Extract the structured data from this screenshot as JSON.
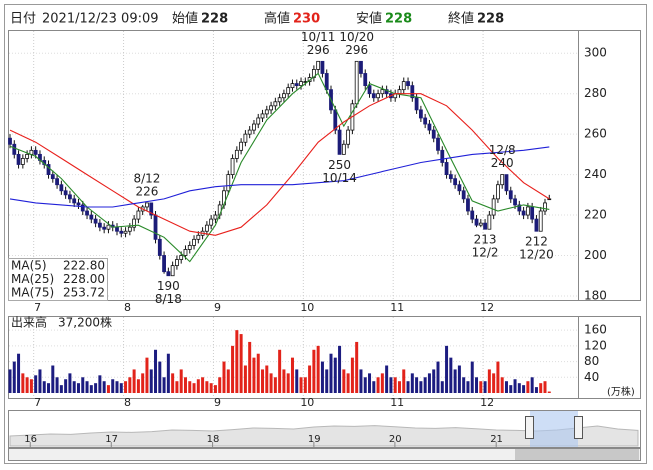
{
  "chart_data": {
    "type": "candlestick",
    "header": {
      "date_label": "日付",
      "datetime": "2021/12/23 09:09",
      "open_label": "始値",
      "high_label": "高値",
      "low_label": "安値",
      "close_label": "終値"
    },
    "open": [
      258,
      255,
      250,
      245,
      248,
      250,
      252,
      250,
      247,
      245,
      240,
      238,
      235,
      232,
      230,
      228,
      226,
      225,
      222,
      220,
      218,
      216,
      214,
      213,
      215,
      214,
      212,
      211,
      212,
      214,
      218,
      222,
      224,
      226,
      220,
      208,
      200,
      192,
      190,
      195,
      198,
      200,
      203,
      205,
      208,
      210,
      212,
      215,
      218,
      220,
      225,
      232,
      240,
      248,
      252,
      256,
      260,
      262,
      265,
      268,
      270,
      272,
      274,
      276,
      278,
      280,
      283,
      285,
      284,
      286,
      286,
      288,
      292,
      296,
      290,
      282,
      272,
      262,
      250,
      255,
      262,
      275,
      296,
      290,
      284,
      280,
      278,
      280,
      282,
      280,
      278,
      280,
      282,
      286,
      284,
      278,
      272,
      268,
      265,
      262,
      258,
      252,
      246,
      240,
      238,
      235,
      232,
      228,
      222,
      218,
      215,
      216,
      213,
      220,
      228,
      235,
      240,
      232,
      228,
      225,
      222,
      220,
      224,
      218,
      212,
      222,
      228
    ],
    "high": [
      260,
      257,
      252,
      250,
      252,
      254,
      254,
      252,
      249,
      247,
      242,
      240,
      237,
      234,
      232,
      230,
      228,
      227,
      224,
      222,
      220,
      218,
      216,
      217,
      217,
      216,
      214,
      214,
      216,
      220,
      224,
      225,
      226,
      226,
      222,
      210,
      202,
      194,
      197,
      200,
      202,
      205,
      207,
      210,
      212,
      214,
      217,
      220,
      222,
      227,
      234,
      242,
      250,
      254,
      258,
      262,
      264,
      267,
      270,
      272,
      274,
      276,
      278,
      280,
      282,
      285,
      287,
      287,
      288,
      288,
      290,
      294,
      296,
      296,
      292,
      284,
      274,
      264,
      257,
      264,
      277,
      296,
      296,
      292,
      286,
      282,
      282,
      284,
      284,
      282,
      282,
      284,
      288,
      288,
      286,
      280,
      274,
      270,
      267,
      264,
      260,
      254,
      248,
      242,
      240,
      237,
      234,
      230,
      224,
      220,
      218,
      218,
      222,
      230,
      237,
      240,
      240,
      234,
      230,
      227,
      224,
      226,
      226,
      220,
      224,
      228,
      230
    ],
    "low": [
      253,
      248,
      243,
      243,
      246,
      248,
      248,
      245,
      243,
      238,
      236,
      233,
      230,
      228,
      226,
      224,
      223,
      220,
      218,
      216,
      214,
      212,
      211,
      211,
      212,
      210,
      209,
      209,
      210,
      212,
      216,
      220,
      222,
      218,
      206,
      198,
      191,
      190,
      191,
      193,
      196,
      198,
      201,
      203,
      206,
      208,
      210,
      213,
      216,
      218,
      223,
      230,
      238,
      246,
      250,
      254,
      258,
      260,
      263,
      266,
      268,
      270,
      272,
      274,
      276,
      278,
      281,
      282,
      282,
      284,
      284,
      286,
      290,
      288,
      280,
      270,
      260,
      250,
      251,
      253,
      260,
      273,
      288,
      282,
      278,
      276,
      276,
      278,
      278,
      276,
      276,
      278,
      280,
      282,
      276,
      270,
      266,
      263,
      260,
      256,
      250,
      244,
      238,
      236,
      233,
      230,
      226,
      220,
      216,
      214,
      214,
      213,
      214,
      218,
      226,
      233,
      230,
      226,
      223,
      220,
      218,
      218,
      216,
      212,
      213,
      220,
      228
    ],
    "close": [
      255,
      250,
      245,
      248,
      250,
      252,
      250,
      247,
      245,
      240,
      238,
      235,
      232,
      230,
      228,
      226,
      225,
      222,
      220,
      218,
      216,
      214,
      213,
      215,
      214,
      212,
      211,
      212,
      214,
      218,
      222,
      224,
      226,
      220,
      208,
      200,
      192,
      190,
      195,
      198,
      200,
      203,
      205,
      208,
      210,
      212,
      215,
      218,
      220,
      225,
      232,
      240,
      248,
      252,
      256,
      260,
      262,
      265,
      268,
      270,
      272,
      274,
      276,
      278,
      280,
      283,
      285,
      284,
      286,
      286,
      288,
      292,
      296,
      290,
      282,
      272,
      262,
      250,
      255,
      262,
      275,
      296,
      290,
      284,
      280,
      278,
      280,
      282,
      280,
      278,
      280,
      282,
      286,
      284,
      278,
      272,
      268,
      265,
      262,
      258,
      252,
      246,
      240,
      238,
      235,
      232,
      228,
      222,
      218,
      215,
      216,
      213,
      220,
      228,
      235,
      240,
      232,
      228,
      225,
      222,
      220,
      224,
      218,
      212,
      222,
      226,
      228
    ],
    "up_color": "#ffffff",
    "down_color": "#1c1c78",
    "candle_edge": "#111111",
    "ylim": [
      178,
      311
    ],
    "yticks": [
      180,
      200,
      220,
      240,
      260,
      280,
      300
    ],
    "grid": true,
    "months": [
      {
        "label": "7",
        "index": 6
      },
      {
        "label": "8",
        "index": 27
      },
      {
        "label": "9",
        "index": 48
      },
      {
        "label": "10",
        "index": 69
      },
      {
        "label": "11",
        "index": 90
      },
      {
        "label": "12",
        "index": 111
      }
    ],
    "ma": [
      {
        "name": "MA(5)",
        "color": "#2a8a2a",
        "value_label": "222.80",
        "x": [
          0,
          6,
          12,
          18,
          24,
          30,
          36,
          42,
          48,
          54,
          60,
          66,
          72,
          78,
          84,
          90,
          96,
          102,
          108,
          114,
          120,
          126
        ],
        "values": [
          254,
          249,
          238,
          224,
          214,
          215,
          209,
          197,
          215,
          246,
          267,
          280,
          290,
          264,
          285,
          280,
          278,
          252,
          227,
          222,
          225,
          222.8
        ]
      },
      {
        "name": "MA(25)",
        "color": "#e8201c",
        "value_label": "228.00",
        "x": [
          0,
          6,
          12,
          18,
          24,
          30,
          36,
          42,
          48,
          54,
          60,
          66,
          72,
          78,
          84,
          90,
          96,
          102,
          108,
          114,
          120,
          126
        ],
        "values": [
          262,
          256,
          248,
          240,
          232,
          224,
          218,
          212,
          210,
          214,
          225,
          240,
          256,
          266,
          274,
          280,
          280,
          274,
          262,
          248,
          236,
          228
        ]
      },
      {
        "name": "MA(75)",
        "color": "#2020d8",
        "value_label": "253.72",
        "x": [
          0,
          6,
          12,
          18,
          24,
          30,
          36,
          42,
          48,
          54,
          60,
          66,
          72,
          78,
          84,
          90,
          96,
          102,
          108,
          114,
          120,
          126
        ],
        "values": [
          228,
          226,
          225,
          224,
          224,
          226,
          228,
          232,
          234,
          235,
          235,
          235,
          236,
          237,
          240,
          243,
          246,
          248,
          250,
          251,
          252,
          253.72
        ]
      }
    ],
    "annotations": [
      {
        "date": "8/12",
        "index": 32,
        "field": "high"
      },
      {
        "date": "8/18",
        "index": 37,
        "field": "low"
      },
      {
        "date": "10/11",
        "index": 72,
        "field": "high"
      },
      {
        "date": "10/14",
        "index": 77,
        "field": "low"
      },
      {
        "date": "10/20",
        "index": 81,
        "field": "high"
      },
      {
        "date": "12/2",
        "index": 111,
        "field": "low"
      },
      {
        "date": "12/8",
        "index": 115,
        "field": "high"
      },
      {
        "date": "12/20",
        "index": 123,
        "field": "low"
      }
    ],
    "volume": {
      "label": "出来高",
      "current": "37,200株",
      "unit": "(万株)",
      "up_color": "#e2231a",
      "down_color": "#1c1c80",
      "ylim": [
        0,
        196
      ],
      "yticks": [
        40,
        80,
        120,
        160
      ],
      "values": [
        60,
        80,
        100,
        50,
        40,
        35,
        45,
        60,
        30,
        25,
        70,
        40,
        20,
        35,
        50,
        30,
        25,
        40,
        30,
        20,
        25,
        45,
        30,
        20,
        35,
        30,
        25,
        30,
        40,
        60,
        35,
        50,
        90,
        60,
        110,
        80,
        40,
        100,
        50,
        30,
        60,
        40,
        30,
        25,
        35,
        40,
        30,
        25,
        20,
        40,
        80,
        60,
        120,
        160,
        150,
        70,
        130,
        90,
        100,
        60,
        70,
        50,
        40,
        110,
        60,
        50,
        90,
        60,
        40,
        40,
        70,
        110,
        120,
        80,
        60,
        100,
        90,
        120,
        60,
        50,
        90,
        130,
        60,
        40,
        50,
        30,
        40,
        50,
        70,
        40,
        40,
        30,
        60,
        30,
        50,
        40,
        30,
        40,
        50,
        60,
        80,
        30,
        120,
        90,
        60,
        70,
        40,
        30,
        80,
        40,
        30,
        30,
        60,
        50,
        80,
        40,
        30,
        20,
        35,
        25,
        20,
        30,
        40,
        15,
        25,
        30,
        3.72
      ]
    },
    "navigator": {
      "color": "#b8b8b8",
      "ylim": [
        150,
        320
      ],
      "values": [
        200,
        205,
        210,
        208,
        215,
        220,
        218,
        222,
        230,
        228,
        225,
        232,
        240,
        238,
        235,
        245,
        250,
        248,
        252,
        246,
        240,
        238,
        242,
        236,
        230,
        228,
        225,
        230,
        240,
        250,
        235,
        228
      ],
      "years": [
        {
          "label": "16",
          "index": 1
        },
        {
          "label": "17",
          "index": 5
        },
        {
          "label": "18",
          "index": 10
        },
        {
          "label": "19",
          "index": 15
        },
        {
          "label": "20",
          "index": 19
        },
        {
          "label": "21",
          "index": 24
        }
      ]
    }
  }
}
